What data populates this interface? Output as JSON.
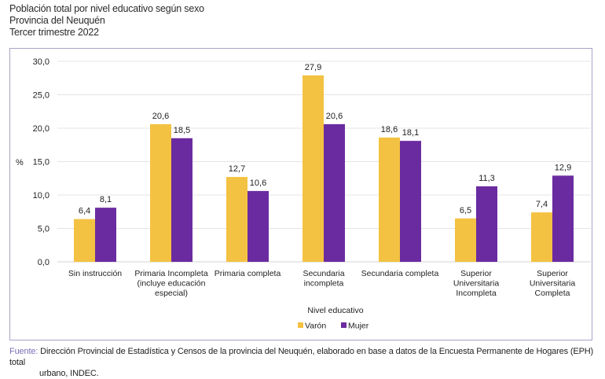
{
  "header": {
    "title_lines": [
      "Población total por nivel educativo según sexo",
      "Provincia del Neuquén",
      "Tercer trimestre 2022"
    ]
  },
  "chart_data": {
    "type": "bar",
    "title": "Población total por nivel educativo según sexo",
    "subtitle": "Provincia del Neuquén — Tercer trimestre 2022",
    "xlabel": "Nivel educativo",
    "ylabel": "%",
    "ylim": [
      0,
      30
    ],
    "yticks": [
      "0,0",
      "5,0",
      "10,0",
      "15,0",
      "20,0",
      "25,0",
      "30,0"
    ],
    "ytick_values": [
      0,
      5,
      10,
      15,
      20,
      25,
      30
    ],
    "grid": true,
    "legend_position": "bottom-center",
    "categories": [
      [
        "Sin instrucción"
      ],
      [
        "Primaria Incompleta",
        "(incluye educación",
        "especial)"
      ],
      [
        "Primaria completa"
      ],
      [
        "Secundaria",
        "incompleta"
      ],
      [
        "Secundaria completa"
      ],
      [
        "Superior",
        "Universitaria",
        "Incompleta"
      ],
      [
        "Superior",
        "Universitaria",
        "Completa"
      ]
    ],
    "series": [
      {
        "name": "Varón",
        "color": "#F4C242",
        "values": [
          6.4,
          20.6,
          12.7,
          27.9,
          18.6,
          6.5,
          7.4
        ],
        "labels": [
          "6,4",
          "20,6",
          "12,7",
          "27,9",
          "18,6",
          "6,5",
          "7,4"
        ]
      },
      {
        "name": "Mujer",
        "color": "#6B2BA0",
        "values": [
          8.1,
          18.5,
          10.6,
          20.6,
          18.1,
          11.3,
          12.9
        ],
        "labels": [
          "8,1",
          "18,5",
          "10,6",
          "20,6",
          "18,1",
          "11,3",
          "12,9"
        ]
      }
    ]
  },
  "footer": {
    "source_label": "Fuente:",
    "source_text": "Dirección Provincial de Estadística y Censos de la provincia del Neuquén, elaborado en base a datos de la Encuesta Permanente de Hogares (EPH) total",
    "source_text_line2": "urbano, INDEC."
  }
}
